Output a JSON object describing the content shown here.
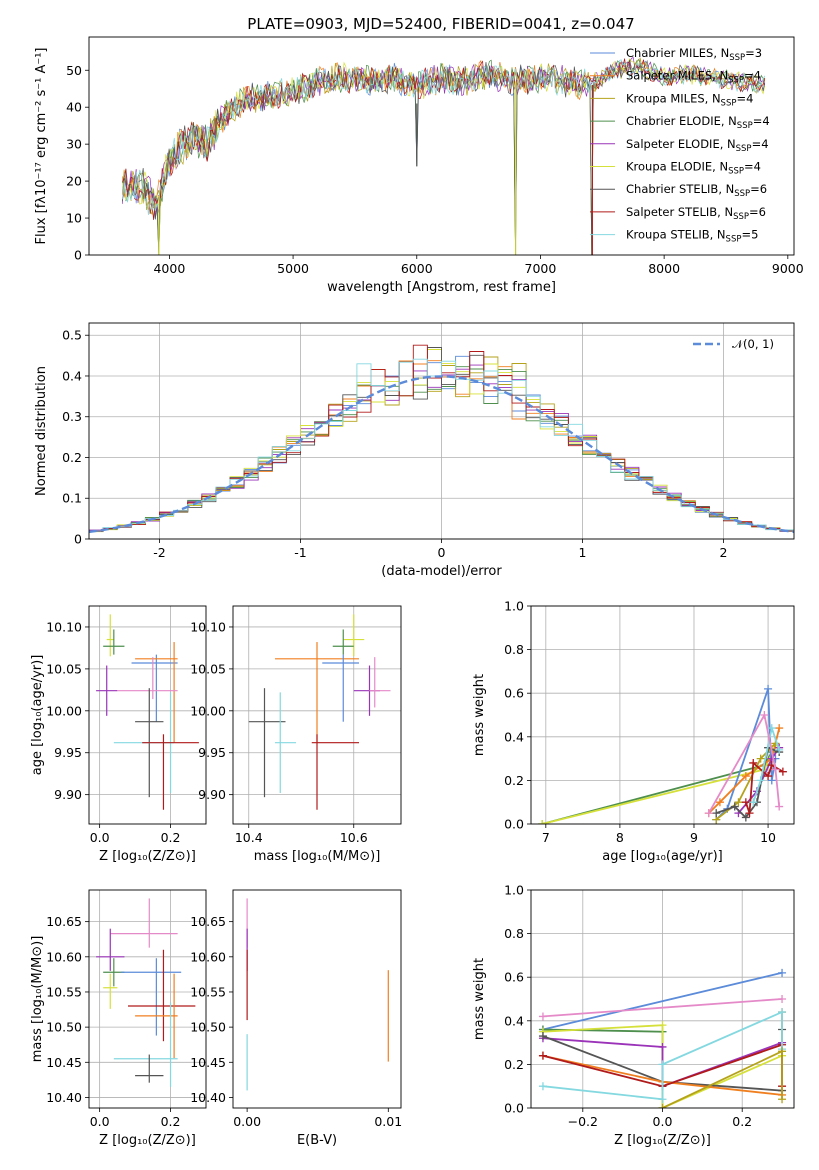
{
  "title": "PLATE=0903, MJD=52400, FIBERID=0041, z=0.047",
  "colors": {
    "chabrier_miles": "#5b8bd9",
    "salpeter_miles": "#f07f20",
    "kroupa_miles": "#b5a21b",
    "chabrier_elodie": "#4e8f4e",
    "salpeter_elodie": "#9a33b8",
    "kroupa_elodie": "#d6e03a",
    "chabrier_stelib": "#555555",
    "salpeter_stelib": "#b01a1a",
    "kroupa_stelib": "#84d8e0",
    "pink": "#e58ac8",
    "normal_curve": "#5b8bd9"
  },
  "chart_data": [
    {
      "type": "line",
      "panel": "spectrum",
      "xlabel": "wavelength [Angstrom, rest frame]",
      "ylabel": "Flux [fλ10⁻¹⁷ erg cm⁻² s⁻¹ A⁻¹]",
      "xlim": [
        3350,
        9050
      ],
      "ylim": [
        0,
        59
      ],
      "xticks": [
        4000,
        5000,
        6000,
        7000,
        8000,
        9000
      ],
      "yticks": [
        0,
        10,
        20,
        30,
        40,
        50
      ],
      "legend_position": "top-right",
      "series": [
        {
          "name": "Chabrier MILES, N",
          "sub": "SSP",
          "tail": "=3"
        },
        {
          "name": "Salpeter MILES, N",
          "sub": "SSP",
          "tail": "=4"
        },
        {
          "name": "Kroupa MILES, N",
          "sub": "SSP",
          "tail": "=4"
        },
        {
          "name": "Chabrier ELODIE, N",
          "sub": "SSP",
          "tail": "=4"
        },
        {
          "name": "Salpeter ELODIE, N",
          "sub": "SSP",
          "tail": "=4"
        },
        {
          "name": "Kroupa ELODIE, N",
          "sub": "SSP",
          "tail": "=4"
        },
        {
          "name": "Chabrier STELIB, N",
          "sub": "SSP",
          "tail": "=6"
        },
        {
          "name": "Salpeter STELIB, N",
          "sub": "SSP",
          "tail": "=6"
        },
        {
          "name": "Kroupa STELIB, N",
          "sub": "SSP",
          "tail": "=5"
        }
      ],
      "continuum": {
        "x": [
          3600,
          3700,
          3800,
          3900,
          4000,
          4100,
          4200,
          4300,
          4400,
          4500,
          4600,
          4800,
          5000,
          5200,
          5400,
          5600,
          5800,
          6000,
          6200,
          6400,
          6600,
          6800,
          7000,
          7200,
          7400,
          7600,
          7800,
          8000,
          8200,
          8400,
          8600,
          8800
        ],
        "y": [
          18,
          19,
          18,
          13,
          26,
          30,
          32,
          30,
          36,
          39,
          42,
          43,
          44,
          47,
          48,
          47,
          48,
          46,
          48,
          47,
          49,
          47,
          48,
          47,
          46,
          50,
          51,
          48,
          49,
          48,
          47,
          46
        ]
      },
      "drops": [
        {
          "x": 3915,
          "y": 0
        },
        {
          "x": 6000,
          "y": 24
        },
        {
          "x": 6800,
          "y": 0
        },
        {
          "x": 7420,
          "y": 0
        }
      ]
    },
    {
      "type": "step",
      "panel": "residual histogram",
      "xlabel": "(data-model)/error",
      "ylabel": "Normed distribution",
      "xlim": [
        -2.5,
        2.5
      ],
      "ylim": [
        0,
        0.53
      ],
      "xticks": [
        -2,
        -1,
        0,
        1,
        2
      ],
      "yticks": [
        0.0,
        0.1,
        0.2,
        0.3,
        0.4,
        0.5
      ],
      "grid": true,
      "legend_position": "top-right",
      "reference_curve": {
        "name": "𝒩(0, 1)",
        "mean": 0,
        "sigma": 1,
        "style": "dashed"
      },
      "bin_width": 0.1
    },
    {
      "type": "errorbar",
      "panel": "age vs Z",
      "xlabel": "Z [log₁₀(Z/Z⊙)]",
      "ylabel": "age  [log₁₀(age/yr)]",
      "xlim": [
        -0.03,
        0.3
      ],
      "ylim": [
        9.865,
        10.125
      ],
      "xticks": [
        "0.0",
        "0.2"
      ],
      "yticks": [
        "9.90",
        "9.95",
        "10.00",
        "10.05",
        "10.10"
      ],
      "grid": true,
      "points": [
        {
          "color": "kroupa_elodie",
          "x": 0.03,
          "y": 10.085,
          "xerr": [
            0.01,
            0.01
          ],
          "yerr": [
            0.02,
            0.03
          ]
        },
        {
          "color": "chabrier_elodie",
          "x": 0.04,
          "y": 10.077,
          "xerr": [
            0.03,
            0.03
          ],
          "yerr": [
            0.01,
            0.02
          ]
        },
        {
          "color": "chabrier_miles",
          "x": 0.16,
          "y": 10.057,
          "xerr": [
            0.07,
            0.06
          ],
          "yerr": [
            0.07,
            0.01
          ]
        },
        {
          "color": "salpeter_miles",
          "x": 0.21,
          "y": 10.062,
          "xerr": [
            0.11,
            0.01
          ],
          "yerr": [
            0.1,
            0.02
          ]
        },
        {
          "color": "salpeter_elodie",
          "x": 0.02,
          "y": 10.024,
          "xerr": [
            0.03,
            0.03
          ],
          "yerr": [
            0.03,
            0.03
          ]
        },
        {
          "color": "pink",
          "x": 0.15,
          "y": 10.024,
          "xerr": [
            0.1,
            0.07
          ],
          "yerr": [
            0.01,
            0.04
          ]
        },
        {
          "color": "chabrier_stelib",
          "x": 0.14,
          "y": 9.987,
          "xerr": [
            0.04,
            0.04
          ],
          "yerr": [
            0.09,
            0.04
          ]
        },
        {
          "color": "kroupa_stelib",
          "x": 0.2,
          "y": 9.962,
          "xerr": [
            0.16,
            0.01
          ],
          "yerr": [
            0.06,
            0.06
          ]
        },
        {
          "color": "salpeter_stelib",
          "x": 0.18,
          "y": 9.962,
          "xerr": [
            0.06,
            0.1
          ],
          "yerr": [
            0.08,
            0.01
          ]
        }
      ]
    },
    {
      "type": "errorbar",
      "panel": "age vs mass",
      "xlabel": "mass [log₁₀(M/M⊙)]",
      "ylabel": "",
      "xlim": [
        10.37,
        10.69
      ],
      "ylim": [
        9.865,
        10.125
      ],
      "xticks": [
        "10.4",
        "10.6"
      ],
      "yticks": [
        "9.90",
        "9.95",
        "10.00",
        "10.05",
        "10.10"
      ],
      "grid": true,
      "points": [
        {
          "color": "kroupa_elodie",
          "x": 10.6,
          "y": 10.085,
          "xerr": [
            0.02,
            0.02
          ],
          "yerr": [
            0.02,
            0.03
          ]
        },
        {
          "color": "chabrier_elodie",
          "x": 10.58,
          "y": 10.077,
          "xerr": [
            0.02,
            0.02
          ],
          "yerr": [
            0.01,
            0.02
          ]
        },
        {
          "color": "salpeter_miles",
          "x": 10.53,
          "y": 10.062,
          "xerr": [
            0.08,
            0.08
          ],
          "yerr": [
            0.1,
            0.02
          ]
        },
        {
          "color": "chabrier_miles",
          "x": 10.58,
          "y": 10.057,
          "xerr": [
            0.04,
            0.03
          ],
          "yerr": [
            0.07,
            0.01
          ]
        },
        {
          "color": "salpeter_elodie",
          "x": 10.63,
          "y": 10.024,
          "xerr": [
            0.03,
            0.02
          ],
          "yerr": [
            0.03,
            0.03
          ]
        },
        {
          "color": "pink",
          "x": 10.64,
          "y": 10.024,
          "xerr": [
            0.01,
            0.03
          ],
          "yerr": [
            0.02,
            0.04
          ]
        },
        {
          "color": "chabrier_stelib",
          "x": 10.43,
          "y": 9.987,
          "xerr": [
            0.03,
            0.04
          ],
          "yerr": [
            0.09,
            0.04
          ]
        },
        {
          "color": "kroupa_stelib",
          "x": 10.46,
          "y": 9.962,
          "xerr": [
            0.01,
            0.03
          ],
          "yerr": [
            0.06,
            0.06
          ]
        },
        {
          "color": "salpeter_stelib",
          "x": 10.53,
          "y": 9.962,
          "xerr": [
            0.01,
            0.08
          ],
          "yerr": [
            0.08,
            0.01
          ]
        }
      ]
    },
    {
      "type": "line",
      "panel": "mass weight vs age",
      "xlabel": "age  [log₁₀(age/yr)]",
      "ylabel": "mass weight",
      "xlim": [
        6.8,
        10.35
      ],
      "ylim": [
        0,
        1
      ],
      "xticks": [
        "7",
        "8",
        "9",
        "10"
      ],
      "yticks": [
        "0.0",
        "0.2",
        "0.4",
        "0.6",
        "0.8",
        "1.0"
      ],
      "grid": true,
      "marker": "+",
      "series": [
        {
          "color": "chabrier_elodie",
          "x": [
            6.95,
            9.95,
            10.05
          ],
          "y": [
            0.0,
            0.27,
            0.33
          ]
        },
        {
          "color": "kroupa_elodie",
          "x": [
            6.95,
            9.95,
            10.1
          ],
          "y": [
            0.0,
            0.25,
            0.36
          ]
        },
        {
          "color": "chabrier_miles",
          "x": [
            9.3,
            9.45,
            10.0,
            10.05,
            10.1
          ],
          "y": [
            0.02,
            0.07,
            0.62,
            0.2,
            0.3
          ]
        },
        {
          "color": "salpeter_miles",
          "x": [
            9.2,
            9.35,
            9.7,
            10.05,
            10.15
          ],
          "y": [
            0.05,
            0.1,
            0.22,
            0.3,
            0.44
          ]
        },
        {
          "color": "kroupa_miles",
          "x": [
            9.3,
            9.6,
            9.9,
            10.1
          ],
          "y": [
            0.02,
            0.1,
            0.3,
            0.37
          ]
        },
        {
          "color": "salpeter_elodie",
          "x": [
            9.6,
            9.85,
            10.05,
            10.15
          ],
          "y": [
            0.05,
            0.15,
            0.3,
            0.35
          ]
        },
        {
          "color": "chabrier_stelib",
          "x": [
            9.3,
            9.55,
            9.7,
            9.85,
            10.0,
            10.15
          ],
          "y": [
            0.05,
            0.08,
            0.03,
            0.1,
            0.35,
            0.33
          ]
        },
        {
          "color": "salpeter_stelib",
          "x": [
            9.7,
            9.75,
            9.8,
            10.0,
            10.05,
            10.2
          ],
          "y": [
            0.1,
            0.05,
            0.28,
            0.22,
            0.27,
            0.24
          ]
        },
        {
          "color": "kroupa_stelib",
          "x": [
            9.8,
            9.9,
            10.05,
            10.15
          ],
          "y": [
            0.1,
            0.2,
            0.44,
            0.34
          ]
        },
        {
          "color": "pink",
          "x": [
            9.2,
            9.95,
            10.1,
            10.15
          ],
          "y": [
            0.05,
            0.5,
            0.25,
            0.08
          ]
        }
      ]
    },
    {
      "type": "errorbar",
      "panel": "mass vs Z",
      "xlabel": "Z [log₁₀(Z/Z⊙)]",
      "ylabel": "mass [log₁₀(M/M⊙)]",
      "xlim": [
        -0.03,
        0.3
      ],
      "ylim": [
        10.385,
        10.695
      ],
      "xticks": [
        "0.0",
        "0.2"
      ],
      "yticks": [
        "10.40",
        "10.45",
        "10.50",
        "10.55",
        "10.60",
        "10.65"
      ],
      "grid": true,
      "points": [
        {
          "color": "pink",
          "x": 0.14,
          "y": 10.633,
          "xerr": [
            0.11,
            0.08
          ],
          "yerr": [
            0.02,
            0.05
          ]
        },
        {
          "color": "salpeter_elodie",
          "x": 0.03,
          "y": 10.6,
          "xerr": [
            0.04,
            0.04
          ],
          "yerr": [
            0.02,
            0.04
          ]
        },
        {
          "color": "chabrier_elodie",
          "x": 0.04,
          "y": 10.578,
          "xerr": [
            0.03,
            0.03
          ],
          "yerr": [
            0.02,
            0.02
          ]
        },
        {
          "color": "chabrier_miles",
          "x": 0.16,
          "y": 10.578,
          "xerr": [
            0.1,
            0.07
          ],
          "yerr": [
            0.09,
            0.02
          ]
        },
        {
          "color": "kroupa_elodie",
          "x": 0.03,
          "y": 10.556,
          "xerr": [
            0.02,
            0.02
          ],
          "yerr": [
            0.03,
            0.02
          ]
        },
        {
          "color": "salpeter_stelib",
          "x": 0.18,
          "y": 10.53,
          "xerr": [
            0.1,
            0.09
          ],
          "yerr": [
            0.05,
            0.08
          ]
        },
        {
          "color": "salpeter_miles",
          "x": 0.21,
          "y": 10.516,
          "xerr": [
            0.11,
            0.01
          ],
          "yerr": [
            0.06,
            0.06
          ]
        },
        {
          "color": "kroupa_stelib",
          "x": 0.2,
          "y": 10.455,
          "xerr": [
            0.16,
            0.02
          ],
          "yerr": [
            0.04,
            0.08
          ]
        },
        {
          "color": "chabrier_stelib",
          "x": 0.14,
          "y": 10.431,
          "xerr": [
            0.04,
            0.04
          ],
          "yerr": [
            0.01,
            0.03
          ]
        }
      ]
    },
    {
      "type": "errorbar",
      "panel": "mass vs E(B-V)",
      "xlabel": "E(B-V)",
      "ylabel": "",
      "xlim": [
        -0.001,
        0.0109
      ],
      "ylim": [
        10.385,
        10.695
      ],
      "xticks": [
        "0.00",
        "0.01"
      ],
      "yticks": [
        "10.40",
        "10.45",
        "10.50",
        "10.55",
        "10.60",
        "10.65"
      ],
      "grid": false,
      "points": [
        {
          "color": "pink",
          "x": 0.0,
          "y": 10.633,
          "xerr": [
            0,
            0
          ],
          "yerr": [
            0.02,
            0.05
          ]
        },
        {
          "color": "salpeter_elodie",
          "x": 0.0,
          "y": 10.6,
          "xerr": [
            0,
            0
          ],
          "yerr": [
            0.02,
            0.04
          ]
        },
        {
          "color": "salpeter_stelib",
          "x": 0.0,
          "y": 10.55,
          "xerr": [
            0,
            0
          ],
          "yerr": [
            0.04,
            0.06
          ]
        },
        {
          "color": "kroupa_stelib",
          "x": 0.0,
          "y": 10.43,
          "xerr": [
            0,
            0
          ],
          "yerr": [
            0.02,
            0.06
          ]
        },
        {
          "color": "salpeter_miles",
          "x": 0.01,
          "y": 10.516,
          "xerr": [
            0,
            0
          ],
          "yerr": [
            0.065,
            0.065
          ]
        }
      ]
    },
    {
      "type": "line",
      "panel": "mass weight vs Z",
      "xlabel": "Z [log₁₀(Z/Z⊙)]",
      "ylabel": "mass weight",
      "xlim": [
        -0.33,
        0.33
      ],
      "ylim": [
        0,
        1
      ],
      "xticks": [
        "−0.2",
        "0.0",
        "0.2"
      ],
      "yticks": [
        "0.0",
        "0.2",
        "0.4",
        "0.6",
        "0.8",
        "1.0"
      ],
      "grid": true,
      "marker": "+",
      "series": [
        {
          "color": "chabrier_miles",
          "x": [
            -0.3,
            0.3
          ],
          "y": [
            0.36,
            0.62
          ]
        },
        {
          "color": "pink",
          "x": [
            -0.3,
            0.3
          ],
          "y": [
            0.42,
            0.5
          ]
        },
        {
          "color": "chabrier_elodie",
          "x": [
            -0.3,
            0.0,
            0.0
          ],
          "y": [
            0.36,
            0.35,
            0.0
          ]
        },
        {
          "color": "kroupa_elodie",
          "x": [
            -0.3,
            0.0,
            0.0,
            0.3
          ],
          "y": [
            0.35,
            0.38,
            0.0,
            0.24
          ]
        },
        {
          "color": "salpeter_elodie",
          "x": [
            -0.3,
            0.0,
            0.0,
            0.3
          ],
          "y": [
            0.32,
            0.28,
            0.1,
            0.3
          ]
        },
        {
          "color": "chabrier_stelib",
          "x": [
            -0.3,
            0.0,
            0.3,
            0.3
          ],
          "y": [
            0.33,
            0.12,
            0.08,
            0.36
          ]
        },
        {
          "color": "salpeter_miles",
          "x": [
            -0.3,
            0.0,
            0.3,
            0.3
          ],
          "y": [
            0.24,
            0.12,
            0.06,
            0.44
          ]
        },
        {
          "color": "salpeter_stelib",
          "x": [
            -0.3,
            0.0,
            0.3,
            0.3
          ],
          "y": [
            0.24,
            0.1,
            0.29,
            0.1
          ]
        },
        {
          "color": "kroupa_stelib",
          "x": [
            -0.3,
            0.0,
            0.0,
            0.3,
            0.3
          ],
          "y": [
            0.1,
            0.04,
            0.2,
            0.44,
            0.27
          ]
        },
        {
          "color": "kroupa_miles",
          "x": [
            0.0,
            0.3,
            0.3
          ],
          "y": [
            0.0,
            0.26,
            0.04
          ]
        }
      ]
    }
  ]
}
